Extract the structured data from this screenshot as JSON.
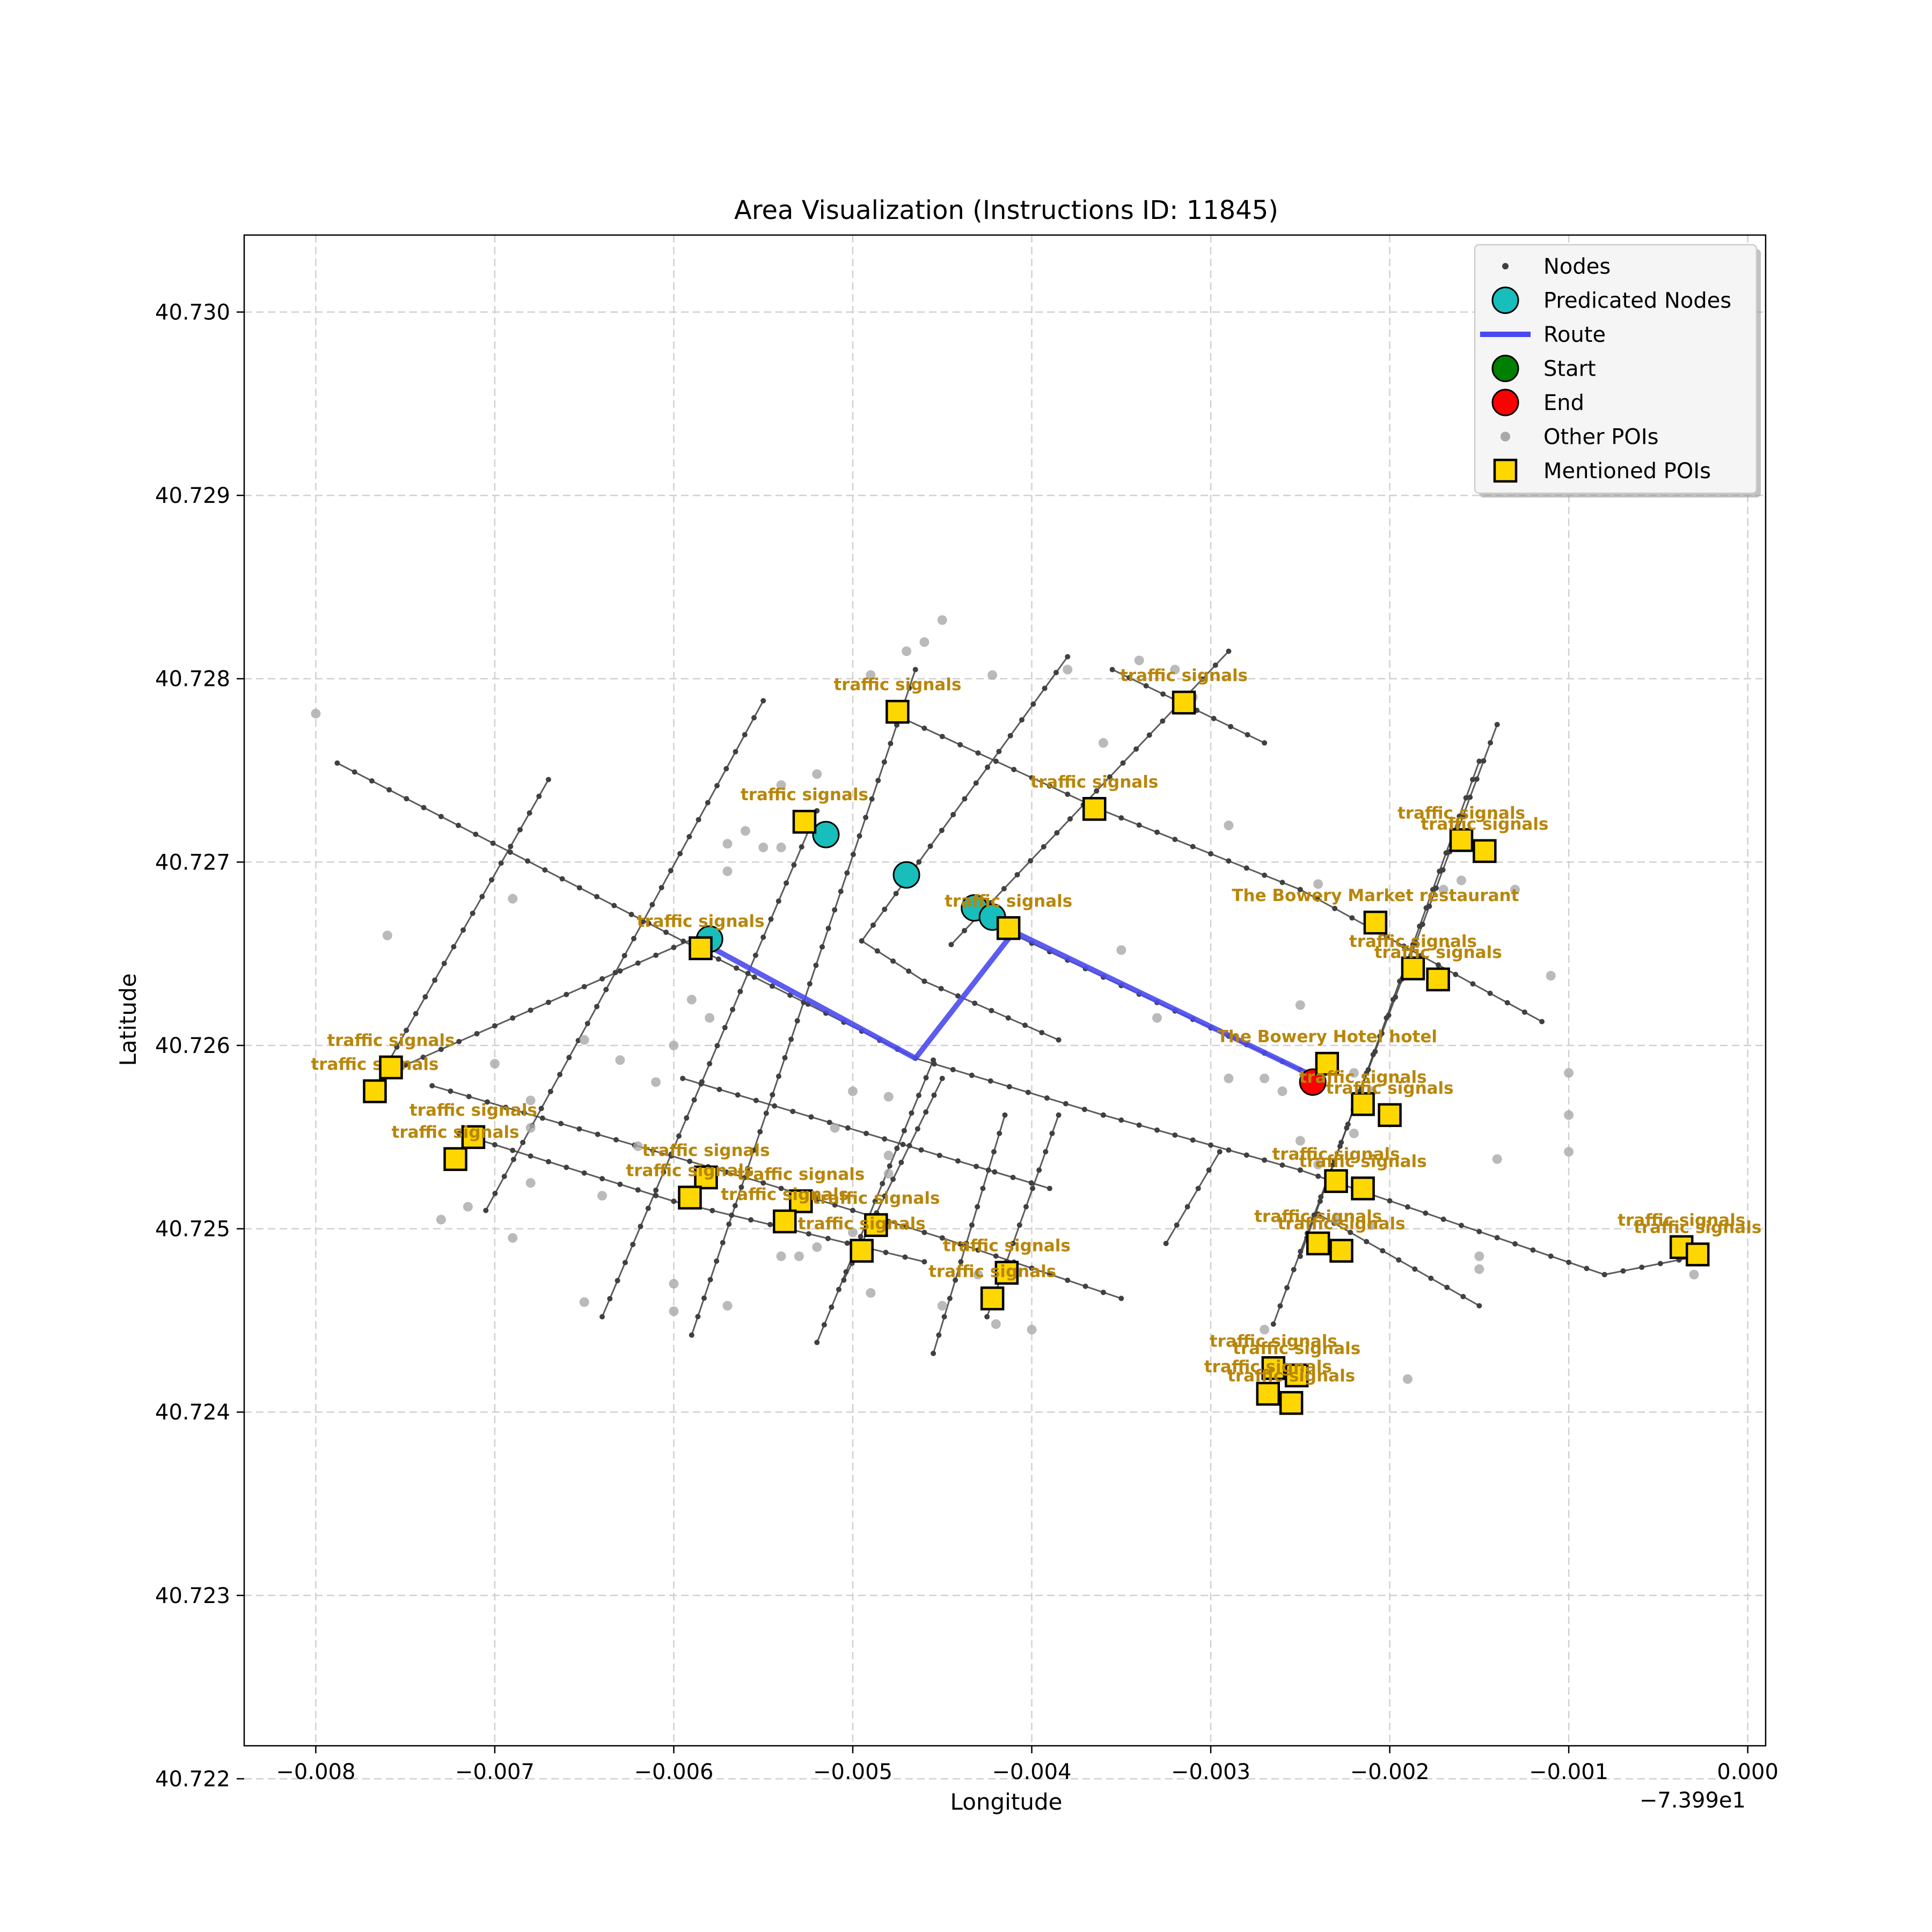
{
  "chart_data": {
    "type": "scatter",
    "title": "Area Visualization (Instructions ID: 11845)",
    "xlabel": "Longitude",
    "ylabel": "Latitude",
    "x_offset_label": "−7.399e1",
    "xlim": [
      -0.0084,
      0.0001
    ],
    "ylim": [
      40.72218,
      40.73042
    ],
    "x_ticks": [
      -0.008,
      -0.007,
      -0.006,
      -0.005,
      -0.004,
      -0.003,
      -0.002,
      -0.001,
      0.0
    ],
    "x_tick_labels": [
      "−0.008",
      "−0.007",
      "−0.006",
      "−0.005",
      "−0.004",
      "−0.003",
      "−0.002",
      "−0.001",
      "0.000"
    ],
    "y_ticks": [
      40.722,
      40.723,
      40.724,
      40.725,
      40.726,
      40.727,
      40.728,
      40.729,
      40.73
    ],
    "y_tick_labels": [
      "40.722",
      "40.723",
      "40.724",
      "40.725",
      "40.726",
      "40.727",
      "40.728",
      "40.729",
      "40.730"
    ],
    "grid": true,
    "legend_position": "top-right",
    "legend": [
      {
        "label": "Nodes",
        "marker": "small-dot",
        "color": "#404040"
      },
      {
        "label": "Predicated Nodes",
        "marker": "circle",
        "color": "#17bebb"
      },
      {
        "label": "Route",
        "marker": "line",
        "color": "#4a4af0"
      },
      {
        "label": "Start",
        "marker": "circle",
        "color": "#008000"
      },
      {
        "label": "End",
        "marker": "circle",
        "color": "#ff0000"
      },
      {
        "label": "Other POIs",
        "marker": "dot",
        "color": "#a9a9a9"
      },
      {
        "label": "Mentioned POIs",
        "marker": "square",
        "color": "#ffd700"
      }
    ],
    "streets": [
      [
        [
          -0.00788,
          40.72754
        ],
        [
          -0.00585,
          40.72652
        ],
        [
          -0.00465,
          40.72593
        ],
        [
          -0.0036,
          40.72562
        ],
        [
          -0.0025,
          40.72532
        ],
        [
          -0.0008,
          40.72475
        ],
        [
          -0.00028,
          40.72485
        ]
      ],
      [
        [
          -0.00735,
          40.72578
        ],
        [
          -0.0055,
          40.72525
        ],
        [
          -0.0045,
          40.72495
        ],
        [
          -0.0035,
          40.72462
        ]
      ],
      [
        [
          -0.0072,
          40.72552
        ],
        [
          -0.006,
          40.72515
        ],
        [
          -0.0046,
          40.72482
        ]
      ],
      [
        [
          -0.0048,
          40.72782
        ],
        [
          -0.0036,
          40.72728
        ],
        [
          -0.0025,
          40.72685
        ],
        [
          -0.00115,
          40.72613
        ]
      ],
      [
        [
          -0.00495,
          40.72657
        ],
        [
          -0.0046,
          40.72635
        ],
        [
          -0.00385,
          40.72603
        ]
      ],
      [
        [
          -0.0042,
          40.72665
        ],
        [
          -0.0034,
          40.72628
        ],
        [
          -0.0024,
          40.72582
        ]
      ],
      [
        [
          -0.0024,
          40.72508
        ],
        [
          -0.0015,
          40.72458
        ]
      ],
      [
        [
          -0.00595,
          40.72582
        ],
        [
          -0.0039,
          40.72522
        ]
      ],
      [
        [
          -0.00705,
          40.7251
        ],
        [
          -0.0055,
          40.72788
        ]
      ],
      [
        [
          -0.0076,
          40.7259
        ],
        [
          -0.0067,
          40.72745
        ]
      ],
      [
        [
          -0.0076,
          40.72585
        ],
        [
          -0.0058,
          40.72662
        ]
      ],
      [
        [
          -0.0064,
          40.72452
        ],
        [
          -0.0052,
          40.72728
        ]
      ],
      [
        [
          -0.0059,
          40.72442
        ],
        [
          -0.00465,
          40.72805
        ]
      ],
      [
        [
          -0.00495,
          40.72657
        ],
        [
          -0.0038,
          40.72812
        ]
      ],
      [
        [
          -0.0052,
          40.72438
        ],
        [
          -0.00455,
          40.72592
        ]
      ],
      [
        [
          -0.00505,
          40.72472
        ],
        [
          -0.0045,
          40.72582
        ]
      ],
      [
        [
          -0.00455,
          40.72432
        ],
        [
          -0.00415,
          40.72562
        ]
      ],
      [
        [
          -0.00425,
          40.72452
        ],
        [
          -0.00385,
          40.72562
        ]
      ],
      [
        [
          -0.00445,
          40.72655
        ],
        [
          -0.0029,
          40.72815
        ]
      ],
      [
        [
          -0.0025,
          40.72485
        ],
        [
          -0.0015,
          40.72755
        ]
      ],
      [
        [
          -0.00265,
          40.72448
        ],
        [
          -0.0014,
          40.72775
        ]
      ],
      [
        [
          -0.00325,
          40.72492
        ],
        [
          -0.00295,
          40.72542
        ]
      ],
      [
        [
          -0.00355,
          40.72805
        ],
        [
          -0.0027,
          40.72765
        ]
      ]
    ],
    "route": [
      [
        -0.00582,
        40.72655
      ],
      [
        -0.00465,
        40.72593
      ],
      [
        -0.0041,
        40.72662
      ],
      [
        -0.0024,
        40.72582
      ]
    ],
    "predicated_nodes": [
      [
        -0.0058,
        40.72658
      ],
      [
        -0.00515,
        40.72715
      ],
      [
        -0.0047,
        40.72693
      ],
      [
        -0.00432,
        40.72675
      ],
      [
        -0.00422,
        40.7267
      ]
    ],
    "start": [],
    "end": [
      [
        -0.00243,
        40.7258
      ]
    ],
    "other_pois": [
      [
        -0.008,
        40.72781
      ],
      [
        -0.0076,
        40.7266
      ],
      [
        -0.0069,
        40.7268
      ],
      [
        -0.007,
        40.7259
      ],
      [
        -0.0069,
        40.72495
      ],
      [
        -0.0073,
        40.72505
      ],
      [
        -0.00715,
        40.72512
      ],
      [
        -0.0068,
        40.72525
      ],
      [
        -0.0068,
        40.72555
      ],
      [
        -0.0068,
        40.7257
      ],
      [
        -0.0061,
        40.7258
      ],
      [
        -0.006,
        40.726
      ],
      [
        -0.0058,
        40.72615
      ],
      [
        -0.0059,
        40.72625
      ],
      [
        -0.0063,
        40.72592
      ],
      [
        -0.0065,
        40.72603
      ],
      [
        -0.0064,
        40.72518
      ],
      [
        -0.0062,
        40.72545
      ],
      [
        -0.0054,
        40.72708
      ],
      [
        -0.0055,
        40.72708
      ],
      [
        -0.0057,
        40.7271
      ],
      [
        -0.0057,
        40.72695
      ],
      [
        -0.0056,
        40.72717
      ],
      [
        -0.0054,
        40.72742
      ],
      [
        -0.0052,
        40.72748
      ],
      [
        -0.0049,
        40.72802
      ],
      [
        -0.0047,
        40.72815
      ],
      [
        -0.0046,
        40.7282
      ],
      [
        -0.0045,
        40.72832
      ],
      [
        -0.00422,
        40.72802
      ],
      [
        -0.0038,
        40.72805
      ],
      [
        -0.0036,
        40.72765
      ],
      [
        -0.0034,
        40.7281
      ],
      [
        -0.0032,
        40.72805
      ],
      [
        -0.0031,
        40.7279
      ],
      [
        -0.0029,
        40.7272
      ],
      [
        -0.0035,
        40.72652
      ],
      [
        -0.0033,
        40.72615
      ],
      [
        -0.0051,
        40.72555
      ],
      [
        -0.0048,
        40.72572
      ],
      [
        -0.005,
        40.72575
      ],
      [
        -0.0048,
        40.7254
      ],
      [
        -0.0048,
        40.7253
      ],
      [
        -0.005,
        40.72498
      ],
      [
        -0.0052,
        40.7249
      ],
      [
        -0.0053,
        40.72485
      ],
      [
        -0.0054,
        40.72485
      ],
      [
        -0.0057,
        40.72458
      ],
      [
        -0.006,
        40.7247
      ],
      [
        -0.006,
        40.72455
      ],
      [
        -0.0065,
        40.7246
      ],
      [
        -0.0049,
        40.72465
      ],
      [
        -0.0045,
        40.72458
      ],
      [
        -0.004,
        40.72445
      ],
      [
        -0.0043,
        40.72475
      ],
      [
        -0.0042,
        40.72448
      ],
      [
        -0.0027,
        40.72445
      ],
      [
        -0.0025,
        40.72548
      ],
      [
        -0.0023,
        40.72505
      ],
      [
        -0.0024,
        40.72535
      ],
      [
        -0.0022,
        40.72552
      ],
      [
        -0.0022,
        40.72585
      ],
      [
        -0.0021,
        40.72575
      ],
      [
        -0.0025,
        40.72622
      ],
      [
        -0.0024,
        40.72688
      ],
      [
        -0.0019,
        40.72418
      ],
      [
        -0.0015,
        40.72485
      ],
      [
        -0.0015,
        40.72478
      ],
      [
        -0.0013,
        40.72685
      ],
      [
        -0.0011,
        40.72638
      ],
      [
        -0.001,
        40.72585
      ],
      [
        -0.001,
        40.72562
      ],
      [
        -0.001,
        40.72542
      ],
      [
        -0.0017,
        40.72685
      ],
      [
        -0.0016,
        40.7269
      ],
      [
        -0.00035,
        40.7249
      ],
      [
        -0.0003,
        40.72475
      ],
      [
        -0.0029,
        40.72582
      ],
      [
        -0.0027,
        40.72582
      ],
      [
        -0.0026,
        40.72575
      ],
      [
        -0.0021,
        40.72502
      ],
      [
        -0.0014,
        40.72538
      ]
    ],
    "mentioned_pois": [
      {
        "x": -0.00475,
        "y": 40.72782,
        "label": "traffic signals"
      },
      {
        "x": -0.00315,
        "y": 40.72787,
        "label": "traffic signals"
      },
      {
        "x": -0.00527,
        "y": 40.72722,
        "label": "traffic signals"
      },
      {
        "x": -0.00365,
        "y": 40.72729,
        "label": "traffic signals"
      },
      {
        "x": -0.00585,
        "y": 40.72653,
        "label": "traffic signals"
      },
      {
        "x": -0.00413,
        "y": 40.72664,
        "label": "traffic signals"
      },
      {
        "x": -0.0016,
        "y": 40.72712,
        "label": "traffic signals"
      },
      {
        "x": -0.00147,
        "y": 40.72706,
        "label": "traffic signals"
      },
      {
        "x": -0.00208,
        "y": 40.72667,
        "label": "The Bowery Market restaurant"
      },
      {
        "x": -0.00187,
        "y": 40.72642,
        "label": "traffic signals"
      },
      {
        "x": -0.00173,
        "y": 40.72636,
        "label": "traffic signals"
      },
      {
        "x": -0.00235,
        "y": 40.7259,
        "label": "The Bowery Hotel   hotel"
      },
      {
        "x": -0.00215,
        "y": 40.72568,
        "label": "traffic signals"
      },
      {
        "x": -0.002,
        "y": 40.72562,
        "label": "traffic signals"
      },
      {
        "x": -0.00767,
        "y": 40.72575,
        "label": "traffic signals"
      },
      {
        "x": -0.00758,
        "y": 40.72588,
        "label": "traffic signals"
      },
      {
        "x": -0.00712,
        "y": 40.7255,
        "label": "traffic signals"
      },
      {
        "x": -0.00722,
        "y": 40.72538,
        "label": "traffic signals"
      },
      {
        "x": -0.00582,
        "y": 40.72528,
        "label": "traffic signals"
      },
      {
        "x": -0.00591,
        "y": 40.72517,
        "label": "traffic signals"
      },
      {
        "x": -0.00529,
        "y": 40.72515,
        "label": "traffic signals"
      },
      {
        "x": -0.00538,
        "y": 40.72504,
        "label": "traffic signals"
      },
      {
        "x": -0.00487,
        "y": 40.72502,
        "label": "traffic signals"
      },
      {
        "x": -0.00495,
        "y": 40.72488,
        "label": "traffic signals"
      },
      {
        "x": -0.00414,
        "y": 40.72476,
        "label": "traffic signals"
      },
      {
        "x": -0.00422,
        "y": 40.72462,
        "label": "traffic signals"
      },
      {
        "x": -0.0023,
        "y": 40.72526,
        "label": "traffic signals"
      },
      {
        "x": -0.00215,
        "y": 40.72522,
        "label": "traffic signals"
      },
      {
        "x": -0.0024,
        "y": 40.72492,
        "label": "traffic signals"
      },
      {
        "x": -0.00227,
        "y": 40.72488,
        "label": "traffic signals"
      },
      {
        "x": -0.00265,
        "y": 40.72424,
        "label": "traffic signals"
      },
      {
        "x": -0.00252,
        "y": 40.7242,
        "label": "traffic signals"
      },
      {
        "x": -0.00268,
        "y": 40.7241,
        "label": "traffic signals"
      },
      {
        "x": -0.00255,
        "y": 40.72405,
        "label": "traffic signals"
      },
      {
        "x": -0.00037,
        "y": 40.7249,
        "label": "traffic signals"
      },
      {
        "x": -0.00028,
        "y": 40.72486,
        "label": "traffic signals"
      }
    ]
  }
}
